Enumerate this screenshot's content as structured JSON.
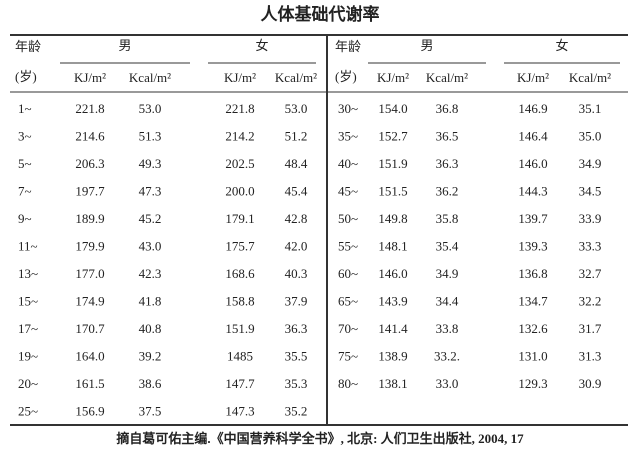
{
  "title": "人体基础代谢率",
  "table": {
    "left_header": {
      "age": "年龄",
      "age_unit": "(岁)",
      "male": "男",
      "female": "女",
      "male_kj": "KJ/m²",
      "male_kcal": "Kcal/m²",
      "female_kj": "KJ/m²",
      "female_kcal": "Kcal/m²"
    },
    "right_header": {
      "age": "年龄",
      "age_unit": "(岁)",
      "male": "男",
      "female": "女",
      "male_kj": "KJ/m²",
      "male_kcal": "Kcal/m²",
      "female_kj": "KJ/m²",
      "female_kcal": "Kcal/m²"
    },
    "left_rows": [
      [
        "1~",
        "221.8",
        "53.0",
        "221.8",
        "53.0"
      ],
      [
        "3~",
        "214.6",
        "51.3",
        "214.2",
        "51.2"
      ],
      [
        "5~",
        "206.3",
        "49.3",
        "202.5",
        "48.4"
      ],
      [
        "7~",
        "197.7",
        "47.3",
        "200.0",
        "45.4"
      ],
      [
        "9~",
        "189.9",
        "45.2",
        "179.1",
        "42.8"
      ],
      [
        "11~",
        "179.9",
        "43.0",
        "175.7",
        "42.0"
      ],
      [
        "13~",
        "177.0",
        "42.3",
        "168.6",
        "40.3"
      ],
      [
        "15~",
        "174.9",
        "41.8",
        "158.8",
        "37.9"
      ],
      [
        "17~",
        "170.7",
        "40.8",
        "151.9",
        "36.3"
      ],
      [
        "19~",
        "164.0",
        "39.2",
        "1485",
        "35.5"
      ],
      [
        "20~",
        "161.5",
        "38.6",
        "147.7",
        "35.3"
      ],
      [
        "25~",
        "156.9",
        "37.5",
        "147.3",
        "35.2"
      ]
    ],
    "right_rows": [
      [
        "30~",
        "154.0",
        "36.8",
        "146.9",
        "35.1"
      ],
      [
        "35~",
        "152.7",
        "36.5",
        "146.4",
        "35.0"
      ],
      [
        "40~",
        "151.9",
        "36.3",
        "146.0",
        "34.9"
      ],
      [
        "45~",
        "151.5",
        "36.2",
        "144.3",
        "34.5"
      ],
      [
        "50~",
        "149.8",
        "35.8",
        "139.7",
        "33.9"
      ],
      [
        "55~",
        "148.1",
        "35.4",
        "139.3",
        "33.3"
      ],
      [
        "60~",
        "146.0",
        "34.9",
        "136.8",
        "32.7"
      ],
      [
        "65~",
        "143.9",
        "34.4",
        "134.7",
        "32.2"
      ],
      [
        "70~",
        "141.4",
        "33.8",
        "132.6",
        "31.7"
      ],
      [
        "75~",
        "138.9",
        "33.2.",
        "131.0",
        "31.3"
      ],
      [
        "80~",
        "138.1",
        "33.0",
        "129.3",
        "30.9"
      ]
    ]
  },
  "footer": "摘自葛可佑主编.《中国营养科学全书》, 北京: 人们卫生出版社, 2004, 17"
}
